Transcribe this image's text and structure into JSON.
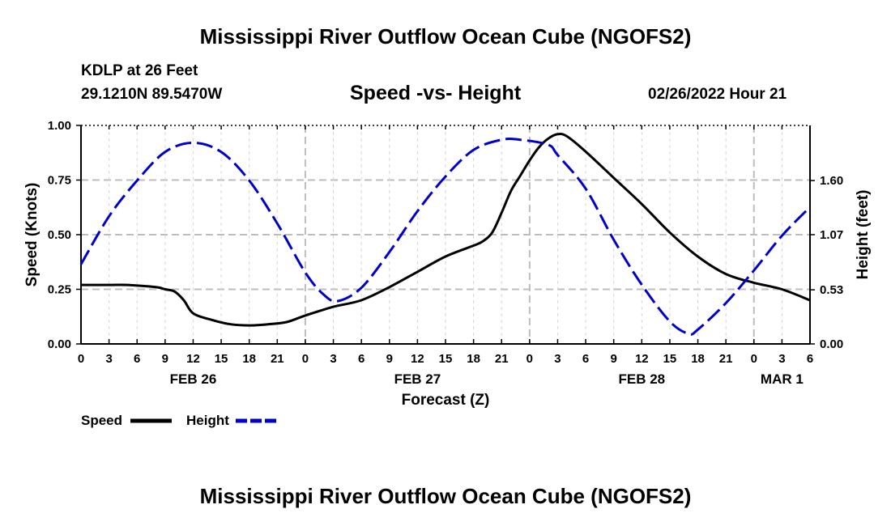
{
  "header": {
    "title": "Mississippi River Outflow Ocean Cube (NGOFS2)",
    "station": "KDLP at 26 Feet",
    "coords": "29.1210N  89.5470W",
    "subtitle": "Speed -vs- Height",
    "datetime": "02/26/2022 Hour 21"
  },
  "footer": {
    "title": "Mississippi River Outflow Ocean Cube (NGOFS2)"
  },
  "chart_data": {
    "type": "line",
    "title": "Speed -vs- Height",
    "xlabel": "Forecast (Z)",
    "ylabel": "Speed (Knots)",
    "y2label": "Height (feet)",
    "xlim": [
      0,
      78
    ],
    "ylim": [
      0,
      1.0
    ],
    "y2lim": [
      0,
      2.14
    ],
    "grid": true,
    "x_ticks": [
      {
        "x": 0,
        "label": "0"
      },
      {
        "x": 3,
        "label": "3"
      },
      {
        "x": 6,
        "label": "6"
      },
      {
        "x": 9,
        "label": "9"
      },
      {
        "x": 12,
        "label": "12"
      },
      {
        "x": 15,
        "label": "15"
      },
      {
        "x": 18,
        "label": "18"
      },
      {
        "x": 21,
        "label": "21"
      },
      {
        "x": 24,
        "label": "0"
      },
      {
        "x": 27,
        "label": "3"
      },
      {
        "x": 30,
        "label": "6"
      },
      {
        "x": 33,
        "label": "9"
      },
      {
        "x": 36,
        "label": "12"
      },
      {
        "x": 39,
        "label": "15"
      },
      {
        "x": 42,
        "label": "18"
      },
      {
        "x": 45,
        "label": "21"
      },
      {
        "x": 48,
        "label": "0"
      },
      {
        "x": 51,
        "label": "3"
      },
      {
        "x": 54,
        "label": "6"
      },
      {
        "x": 57,
        "label": "9"
      },
      {
        "x": 60,
        "label": "12"
      },
      {
        "x": 63,
        "label": "15"
      },
      {
        "x": 66,
        "label": "18"
      },
      {
        "x": 69,
        "label": "21"
      },
      {
        "x": 72,
        "label": "0"
      },
      {
        "x": 75,
        "label": "3"
      },
      {
        "x": 78,
        "label": "6"
      }
    ],
    "date_labels": [
      {
        "x": 12,
        "label": "FEB 26"
      },
      {
        "x": 36,
        "label": "FEB 27"
      },
      {
        "x": 60,
        "label": "FEB 28"
      },
      {
        "x": 75,
        "label": "MAR 1"
      }
    ],
    "y_ticks": [
      "0.00",
      "0.25",
      "0.50",
      "0.75",
      "1.00"
    ],
    "y_tick_values": [
      0,
      0.25,
      0.5,
      0.75,
      1.0
    ],
    "y2_ticks": [
      "0.00",
      "0.53",
      "1.07",
      "1.60"
    ],
    "y2_tick_values": [
      0,
      0.53,
      1.07,
      1.6
    ],
    "series": [
      {
        "name": "Speed",
        "axis": "left",
        "color": "#000000",
        "dash": "solid",
        "x": [
          0,
          3,
          5,
          8,
          9,
          10,
          11,
          12,
          14,
          16,
          18,
          20,
          22,
          24,
          27,
          30,
          33,
          36,
          39,
          42,
          43,
          44,
          45,
          46,
          47,
          48,
          49,
          50,
          51,
          52,
          54,
          57,
          60,
          63,
          66,
          69,
          72,
          75,
          78
        ],
        "values": [
          0.27,
          0.27,
          0.27,
          0.26,
          0.25,
          0.24,
          0.2,
          0.14,
          0.11,
          0.09,
          0.085,
          0.09,
          0.1,
          0.13,
          0.17,
          0.2,
          0.26,
          0.33,
          0.4,
          0.45,
          0.47,
          0.51,
          0.6,
          0.7,
          0.77,
          0.84,
          0.9,
          0.94,
          0.96,
          0.95,
          0.88,
          0.76,
          0.64,
          0.51,
          0.4,
          0.32,
          0.28,
          0.25,
          0.2
        ]
      },
      {
        "name": "Height",
        "axis": "right",
        "color": "#0000cc",
        "dash": "dashed",
        "x": [
          0,
          3,
          6,
          9,
          12,
          15,
          18,
          21,
          24,
          26,
          27.5,
          30,
          33,
          36,
          39,
          42,
          45,
          47,
          50,
          51,
          54,
          57,
          60,
          63,
          65,
          66,
          69,
          72,
          75,
          78
        ],
        "values": [
          0.78,
          1.25,
          1.6,
          1.88,
          1.97,
          1.88,
          1.6,
          1.18,
          0.7,
          0.48,
          0.42,
          0.55,
          0.9,
          1.3,
          1.64,
          1.9,
          2.0,
          2.0,
          1.95,
          1.85,
          1.52,
          1.02,
          0.58,
          0.22,
          0.1,
          0.14,
          0.4,
          0.72,
          1.06,
          1.34
        ]
      }
    ],
    "legend": {
      "position": "bottom-left",
      "items": [
        {
          "label": "Speed",
          "color": "#000000",
          "dash": "solid"
        },
        {
          "label": "Height",
          "color": "#0000cc",
          "dash": "dashed"
        }
      ]
    }
  }
}
